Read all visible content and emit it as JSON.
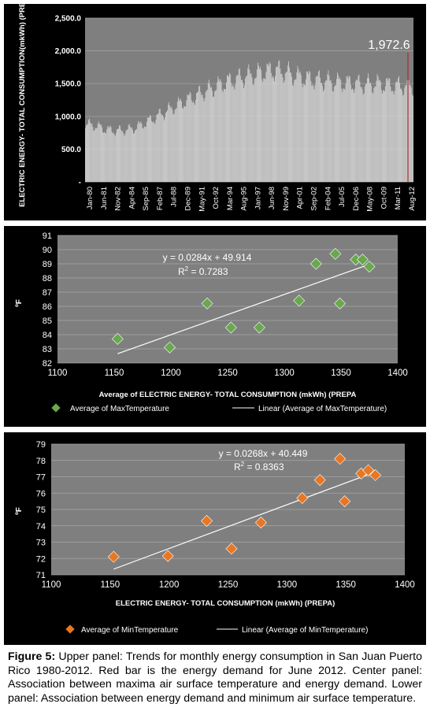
{
  "colors": {
    "panel_bg": "#000000",
    "bar_fill": "#d9d9d9",
    "plot_bg": "#7f7f7f",
    "highlight_bar": "#c00000",
    "max_marker": "#6aa84f",
    "min_marker": "#e87722",
    "scatter_plot_bg": "#7f7f7f"
  },
  "caption": {
    "label": "Figure 5:",
    "text": "Upper panel: Trends for monthly energy consumption in San Juan Puerto Rico 1980-2012. Red bar is the energy demand for June 2012. Center panel: Association between maxima air surface temperature and energy demand. Lower panel: Association between energy demand and minimum air surface temperature."
  },
  "chart_data": [
    {
      "type": "bar",
      "ylabel": "ELECTRIC ENERGY- TOTAL CONSUMPTION(mkWh) (PREPA)",
      "ylim": [
        0,
        2500
      ],
      "y_ticks": [
        "-",
        "500.0",
        "1,000.0",
        "1,500.0",
        "2,000.0",
        "2,500.0"
      ],
      "y_tick_values": [
        0,
        500,
        1000,
        1500,
        2000,
        2500
      ],
      "categories": [
        "Jan-80",
        "Jun-81",
        "Nov-82",
        "Apr-84",
        "Sep-85",
        "Feb-87",
        "Jul-88",
        "Dec-89",
        "May-91",
        "Oct-92",
        "Mar-94",
        "Aug-95",
        "Jan-97",
        "Jun-98",
        "Nov-99",
        "Apr-01",
        "Sep-02",
        "Feb-04",
        "Jul-05",
        "Dec-06",
        "May-08",
        "Oct-09",
        "Mar-11",
        "Aug-12"
      ],
      "annual_mean_values": [
        880,
        860,
        800,
        780,
        790,
        820,
        900,
        980,
        1060,
        1150,
        1230,
        1300,
        1380,
        1440,
        1510,
        1560,
        1600,
        1640,
        1680,
        1700,
        1680,
        1620,
        1580,
        1560,
        1540,
        1520,
        1510,
        1500,
        1480,
        1500,
        1480,
        1470,
        1460
      ],
      "highlight": {
        "label": "1,972.6",
        "value": 1972.6,
        "month": "Jun-12"
      },
      "grid": true
    },
    {
      "type": "scatter",
      "xlabel": "Average of ELECTRIC ENERGY- TOTAL CONSUMPTION (mkWh) (PREPA",
      "ylabel": "ºF",
      "xlim": [
        1100,
        1400
      ],
      "ylim": [
        82,
        91
      ],
      "x_ticks": [
        1100,
        1150,
        1200,
        1250,
        1300,
        1350,
        1400
      ],
      "y_ticks": [
        82,
        83,
        84,
        85,
        86,
        87,
        88,
        89,
        90,
        91
      ],
      "points": [
        [
          1153,
          83.7
        ],
        [
          1199,
          83.1
        ],
        [
          1232,
          86.2
        ],
        [
          1253,
          84.5
        ],
        [
          1278,
          84.5
        ],
        [
          1313,
          86.4
        ],
        [
          1328,
          89.0
        ],
        [
          1345,
          89.7
        ],
        [
          1349,
          86.2
        ],
        [
          1363,
          89.3
        ],
        [
          1369,
          89.3
        ],
        [
          1375,
          88.8
        ]
      ],
      "trendline": {
        "slope": 0.0284,
        "intercept": 49.914
      },
      "equation": "y = 0.0284x + 49.914",
      "r2_prefix": "R",
      "r2_sup": "2",
      "r2_value": " = 0.7283",
      "legend": {
        "series": "Average of  MaxTemperature",
        "linear": "Linear (Average of  MaxTemperature)"
      },
      "grid": true,
      "legend_position": "bottom"
    },
    {
      "type": "scatter",
      "xlabel": "ELECTRIC ENERGY- TOTAL CONSUMPTION (mkWh) (PREPA)",
      "ylabel": "ºF",
      "xlim": [
        1100,
        1400
      ],
      "ylim": [
        71,
        79
      ],
      "x_ticks": [
        1100,
        1150,
        1200,
        1250,
        1300,
        1350,
        1400
      ],
      "y_ticks": [
        71,
        72,
        73,
        74,
        75,
        76,
        77,
        78,
        79
      ],
      "points": [
        [
          1153,
          72.1
        ],
        [
          1199,
          72.15
        ],
        [
          1232,
          74.3
        ],
        [
          1253,
          72.6
        ],
        [
          1278,
          74.2
        ],
        [
          1313,
          75.7
        ],
        [
          1328,
          76.8
        ],
        [
          1345,
          78.1
        ],
        [
          1349,
          75.5
        ],
        [
          1363,
          77.2
        ],
        [
          1369,
          77.4
        ],
        [
          1375,
          77.1
        ]
      ],
      "trendline": {
        "slope": 0.0268,
        "intercept": 40.449
      },
      "equation": "y = 0.0268x + 40.449",
      "r2_prefix": "R",
      "r2_sup": "2",
      "r2_value": " = 0.8363",
      "legend": {
        "series": "Average of  MinTemperature",
        "linear": "Linear (Average of  MinTemperature)"
      },
      "grid": true,
      "legend_position": "bottom"
    }
  ]
}
